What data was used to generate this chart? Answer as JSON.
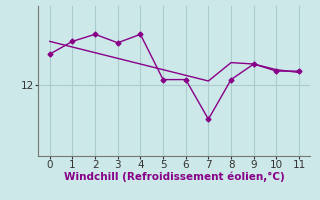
{
  "x": [
    0,
    1,
    2,
    3,
    4,
    5,
    6,
    7,
    8,
    9,
    10,
    11
  ],
  "y_jagged": [
    13.1,
    13.55,
    13.8,
    13.5,
    13.8,
    12.2,
    12.2,
    10.8,
    12.2,
    12.75,
    12.5,
    12.5
  ],
  "y_trend": [
    13.55,
    13.35,
    13.15,
    12.95,
    12.75,
    12.55,
    12.35,
    12.15,
    12.8,
    12.75,
    12.55,
    12.45
  ],
  "line_color": "#880088",
  "background_color": "#cce8e8",
  "grid_color": "#aacccc",
  "xlabel": "Windchill (Refroidissement éolien,°C)",
  "ytick_label": "12",
  "ytick_val": 12.0,
  "xlim": [
    -0.5,
    11.5
  ],
  "ylim": [
    9.5,
    14.8
  ],
  "xlabel_fontsize": 7.5,
  "tick_fontsize": 7.5,
  "marker": "D",
  "marker_size": 2.5,
  "line_width": 1.0
}
